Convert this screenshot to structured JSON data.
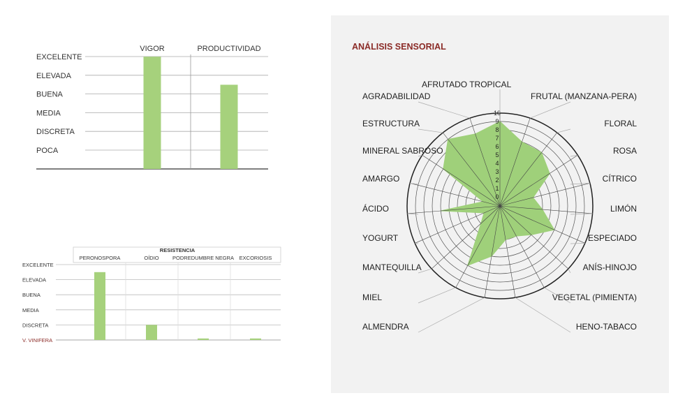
{
  "chart_data": [
    {
      "type": "bar",
      "title": "",
      "levels": [
        "EXCELENTE",
        "ELEVADA",
        "BUENA",
        "MEDIA",
        "DISCRETA",
        "POCA"
      ],
      "categories": [
        "VIGOR",
        "PRODUCTIVIDAD"
      ],
      "values": [
        6,
        4.5
      ],
      "ylim": [
        0,
        6
      ],
      "bar_color": "#a6d17c",
      "grid": true
    },
    {
      "type": "bar",
      "title": "RESISTENCIA",
      "levels": [
        "EXCELENTE",
        "ELEVADA",
        "BUENA",
        "MEDIA",
        "DISCRETA",
        "V. VINIFERA"
      ],
      "baseline_label_color": "#8b2b27",
      "categories": [
        "PERONOSPORA",
        "OÍDIO",
        "PODREDUMBRE NEGRA",
        "EXCORIOSIS"
      ],
      "values": [
        4.5,
        1,
        0.1,
        0.1
      ],
      "ylim": [
        0,
        5
      ],
      "bar_color": "#a6d17c",
      "grid": true
    },
    {
      "type": "radar",
      "title": "ANÁLISIS SENSORIAL",
      "title_color": "#8b2b27",
      "categories": [
        "AFRUTADO TROPICAL",
        "FRUTAL (MANZANA-PERA)",
        "FLORAL",
        "ROSA",
        "CÍTRICO",
        "LIMÓN",
        "ESPECIADO",
        "ANÍS-HINOJO",
        "VEGETAL (PIMIENTA)",
        "HENO-TABACO",
        "ALMENDRA",
        "MIEL",
        "MANTEQUILLA",
        "YOGURT",
        "ÁCIDO",
        "AMARGO",
        "MINERAL SABROSO",
        "ESTRUCTURA",
        "AGRADABILIDAD"
      ],
      "values": [
        9,
        7,
        7,
        6,
        3,
        4,
        6,
        4,
        3,
        3,
        5,
        7,
        2,
        1,
        6,
        1,
        7,
        9,
        8
      ],
      "rlim": [
        0,
        10
      ],
      "ticks": [
        "0",
        "1",
        "2",
        "3",
        "4",
        "5",
        "6",
        "7",
        "8",
        "9",
        "10"
      ],
      "fill_color": "#9fd07a"
    }
  ]
}
